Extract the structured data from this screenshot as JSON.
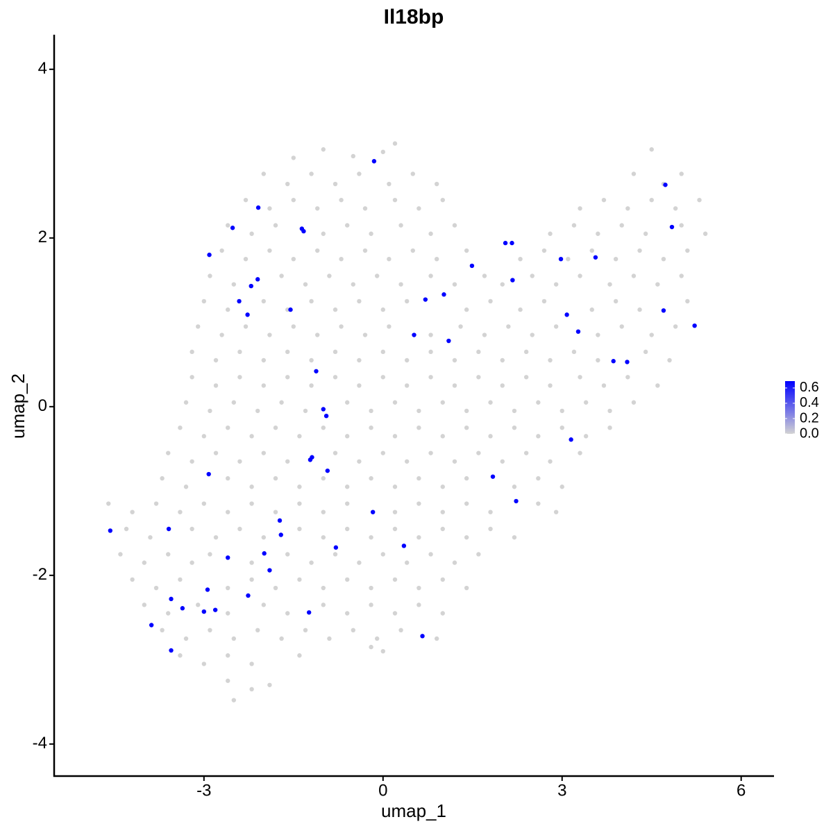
{
  "chart_data": {
    "type": "scatter",
    "title": "Il18bp",
    "xlabel": "umap_1",
    "ylabel": "umap_2",
    "xlim": [
      -5.51,
      6.55
    ],
    "ylim": [
      -4.38,
      4.41
    ],
    "xticks": [
      -3,
      0,
      3,
      6
    ],
    "yticks": [
      -4,
      -2,
      0,
      2,
      4
    ],
    "colorbar": {
      "lim": [
        0,
        0.69
      ],
      "ticks": [
        {
          "value": 0,
          "label": "0.0"
        },
        0.2,
        0.4,
        0.6
      ]
    },
    "series": [
      {
        "color": "#d3d3d3",
        "expression": 0,
        "x": [
          -1.5,
          -1.0,
          -0.5,
          0.0,
          0.2,
          4.5,
          -2.0,
          -1.6,
          -1.2,
          -0.8,
          -0.4,
          0.1,
          0.5,
          0.9,
          4.2,
          4.7,
          5.0,
          -2.3,
          -1.9,
          -1.5,
          -1.1,
          -0.7,
          -0.3,
          0.2,
          0.6,
          1.0,
          3.3,
          3.7,
          4.1,
          4.5,
          4.9,
          5.3,
          -2.6,
          -2.2,
          -1.8,
          -1.0,
          -0.6,
          -0.2,
          0.3,
          0.8,
          1.2,
          2.8,
          3.2,
          3.6,
          4.0,
          4.4,
          5.0,
          5.4,
          -2.7,
          -2.3,
          -1.9,
          -1.5,
          -1.1,
          -0.7,
          -0.3,
          0.1,
          0.5,
          0.9,
          1.4,
          2.3,
          2.7,
          3.1,
          3.5,
          3.9,
          4.3,
          4.7,
          5.1,
          -2.9,
          -2.5,
          -1.7,
          -1.3,
          -0.9,
          -0.5,
          -0.1,
          0.3,
          0.8,
          1.2,
          1.7,
          2.0,
          2.5,
          2.9,
          3.3,
          3.8,
          4.2,
          4.6,
          5.0,
          -3.0,
          -2.6,
          -2.0,
          -1.6,
          -1.2,
          -0.8,
          -0.4,
          0.0,
          0.4,
          1.4,
          1.8,
          2.3,
          2.7,
          3.5,
          3.9,
          4.3,
          5.1,
          -3.1,
          -2.7,
          -2.3,
          -1.9,
          -1.5,
          -1.1,
          -0.7,
          -0.3,
          0.1,
          0.8,
          1.3,
          1.7,
          2.1,
          2.5,
          2.9,
          3.6,
          4.0,
          4.5,
          4.9,
          -3.2,
          -2.8,
          -2.4,
          -2.0,
          -1.6,
          -1.2,
          -0.8,
          -0.4,
          0.0,
          0.4,
          0.8,
          1.2,
          1.6,
          2.0,
          2.4,
          2.8,
          3.2,
          3.6,
          4.4,
          4.8,
          -3.2,
          -2.8,
          -2.4,
          -2.0,
          -1.6,
          -1.2,
          -0.8,
          -0.4,
          0.0,
          0.4,
          0.8,
          1.2,
          1.6,
          2.0,
          2.4,
          2.8,
          3.3,
          3.7,
          4.1,
          4.6,
          -3.3,
          -2.9,
          -2.5,
          -2.1,
          -1.7,
          -1.3,
          -0.6,
          -0.2,
          0.2,
          0.6,
          1.0,
          1.4,
          1.8,
          2.2,
          2.6,
          3.0,
          3.4,
          3.8,
          4.2,
          -3.4,
          -3.0,
          -2.6,
          -2.2,
          -1.8,
          -1.4,
          -1.0,
          -0.6,
          -0.2,
          0.2,
          0.6,
          1.0,
          1.4,
          1.8,
          2.2,
          2.6,
          3.0,
          3.4,
          3.8,
          -3.6,
          -3.2,
          -2.8,
          -2.4,
          -2.0,
          -1.6,
          -0.8,
          -0.4,
          0.0,
          0.4,
          0.8,
          1.2,
          1.6,
          2.0,
          2.4,
          2.8,
          3.3,
          -3.7,
          -3.3,
          -2.6,
          -2.2,
          -1.8,
          -1.4,
          -1.0,
          -0.6,
          -0.2,
          0.2,
          0.6,
          1.0,
          1.4,
          2.2,
          2.6,
          3.0,
          -4.6,
          -4.2,
          -3.8,
          -3.4,
          -3.0,
          -2.6,
          -2.2,
          -1.8,
          -1.4,
          -1.0,
          -0.6,
          0.2,
          0.6,
          1.0,
          1.4,
          1.8,
          2.6,
          2.9,
          -4.3,
          -3.9,
          -3.2,
          -2.8,
          -2.4,
          -2.0,
          -1.4,
          -1.0,
          -0.6,
          -0.2,
          0.2,
          0.6,
          1.0,
          1.4,
          1.8,
          2.2,
          -4.4,
          -4.0,
          -3.6,
          -3.2,
          -2.9,
          -2.2,
          -1.6,
          -1.2,
          -0.8,
          -0.4,
          0.0,
          0.4,
          0.8,
          1.2,
          1.6,
          -4.2,
          -3.8,
          -3.4,
          -2.6,
          -2.2,
          -1.8,
          -1.4,
          -1.0,
          -0.6,
          -0.2,
          0.2,
          0.6,
          1.0,
          1.4,
          -4.0,
          -3.6,
          -3.1,
          -2.6,
          -2.0,
          -1.6,
          -1.0,
          -0.6,
          -0.2,
          0.2,
          0.6,
          1.0,
          -3.7,
          -3.3,
          -2.9,
          -2.5,
          -2.1,
          -1.7,
          -1.3,
          -0.9,
          -0.5,
          -0.1,
          0.3,
          0.9,
          -3.4,
          -3.0,
          -2.6,
          -2.2,
          -1.4,
          -0.2,
          0.0,
          -2.6,
          -2.2,
          -1.9,
          -2.5
        ],
        "y": [
          2.95,
          3.05,
          2.97,
          3.02,
          3.12,
          3.05,
          2.76,
          2.64,
          2.76,
          2.64,
          2.76,
          2.64,
          2.76,
          2.64,
          2.76,
          2.64,
          2.76,
          2.45,
          2.35,
          2.45,
          2.35,
          2.45,
          2.35,
          2.45,
          2.35,
          2.45,
          2.35,
          2.45,
          2.35,
          2.45,
          2.35,
          2.45,
          2.15,
          2.05,
          2.15,
          2.05,
          2.15,
          2.05,
          2.15,
          2.05,
          2.15,
          2.05,
          2.15,
          2.05,
          2.15,
          2.05,
          2.15,
          2.05,
          1.85,
          1.75,
          1.85,
          1.75,
          1.85,
          1.75,
          1.85,
          1.75,
          1.85,
          1.75,
          1.85,
          1.75,
          1.85,
          1.75,
          1.85,
          1.75,
          1.85,
          1.75,
          1.85,
          1.55,
          1.45,
          1.55,
          1.45,
          1.55,
          1.45,
          1.55,
          1.45,
          1.55,
          1.45,
          1.55,
          1.45,
          1.55,
          1.45,
          1.55,
          1.45,
          1.55,
          1.45,
          1.55,
          1.25,
          1.15,
          1.25,
          1.15,
          1.25,
          1.15,
          1.25,
          1.15,
          1.25,
          1.15,
          1.25,
          1.15,
          1.25,
          1.15,
          1.25,
          1.15,
          1.25,
          0.95,
          0.85,
          0.95,
          0.85,
          0.95,
          0.85,
          0.95,
          0.85,
          0.95,
          0.85,
          0.95,
          0.85,
          0.95,
          0.85,
          0.95,
          0.85,
          0.95,
          0.85,
          0.95,
          0.65,
          0.55,
          0.65,
          0.55,
          0.65,
          0.55,
          0.65,
          0.55,
          0.65,
          0.55,
          0.65,
          0.55,
          0.65,
          0.55,
          0.65,
          0.55,
          0.65,
          0.55,
          0.65,
          0.55,
          0.35,
          0.25,
          0.35,
          0.25,
          0.35,
          0.25,
          0.35,
          0.25,
          0.35,
          0.25,
          0.35,
          0.25,
          0.35,
          0.25,
          0.35,
          0.25,
          0.35,
          0.25,
          0.35,
          0.25,
          0.05,
          -0.05,
          0.05,
          -0.05,
          0.05,
          -0.05,
          0.05,
          -0.05,
          0.05,
          -0.05,
          0.05,
          -0.05,
          0.05,
          -0.05,
          0.05,
          -0.05,
          0.05,
          -0.05,
          0.05,
          -0.25,
          -0.35,
          -0.25,
          -0.35,
          -0.25,
          -0.35,
          -0.25,
          -0.35,
          -0.25,
          -0.35,
          -0.25,
          -0.35,
          -0.25,
          -0.35,
          -0.25,
          -0.35,
          -0.25,
          -0.35,
          -0.25,
          -0.55,
          -0.65,
          -0.55,
          -0.65,
          -0.55,
          -0.65,
          -0.55,
          -0.65,
          -0.55,
          -0.65,
          -0.55,
          -0.65,
          -0.55,
          -0.65,
          -0.55,
          -0.65,
          -0.55,
          -0.85,
          -0.95,
          -0.85,
          -0.95,
          -0.85,
          -0.95,
          -0.85,
          -0.95,
          -0.85,
          -0.95,
          -0.85,
          -0.95,
          -0.85,
          -0.95,
          -0.85,
          -0.95,
          -1.15,
          -1.25,
          -1.15,
          -1.25,
          -1.15,
          -1.25,
          -1.15,
          -1.25,
          -1.15,
          -1.25,
          -1.15,
          -1.25,
          -1.15,
          -1.25,
          -1.15,
          -1.25,
          -1.15,
          -1.25,
          -1.45,
          -1.55,
          -1.45,
          -1.55,
          -1.45,
          -1.55,
          -1.45,
          -1.55,
          -1.45,
          -1.55,
          -1.45,
          -1.55,
          -1.45,
          -1.55,
          -1.45,
          -1.55,
          -1.75,
          -1.85,
          -1.75,
          -1.85,
          -1.75,
          -1.85,
          -1.75,
          -1.85,
          -1.75,
          -1.85,
          -1.75,
          -1.85,
          -1.75,
          -1.85,
          -1.75,
          -2.05,
          -2.15,
          -2.05,
          -2.15,
          -2.05,
          -2.15,
          -2.05,
          -2.15,
          -2.05,
          -2.15,
          -2.05,
          -2.15,
          -2.05,
          -2.15,
          -2.35,
          -2.45,
          -2.35,
          -2.45,
          -2.35,
          -2.45,
          -2.35,
          -2.45,
          -2.35,
          -2.45,
          -2.35,
          -2.45,
          -2.65,
          -2.75,
          -2.65,
          -2.75,
          -2.65,
          -2.75,
          -2.65,
          -2.75,
          -2.65,
          -2.75,
          -2.65,
          -2.75,
          -2.95,
          -3.05,
          -2.95,
          -3.05,
          -2.95,
          -2.85,
          -2.9,
          -3.25,
          -3.35,
          -3.3,
          -3.48
        ]
      },
      {
        "color": "#0000ff",
        "expression": 0.69,
        "x": [
          -0.15,
          -2.09,
          -2.52,
          -1.36,
          -1.33,
          -2.91,
          2.05,
          2.16,
          1.49,
          2.98,
          3.56,
          4.73,
          4.84,
          -2.1,
          -2.21,
          2.17,
          1.02,
          0.71,
          -2.41,
          -1.55,
          -2.27,
          3.08,
          4.7,
          3.27,
          5.22,
          0.52,
          1.1,
          3.86,
          4.09,
          -1.12,
          -1.0,
          -0.95,
          3.15,
          -1.19,
          -1.22,
          -0.93,
          -2.92,
          1.84,
          2.23,
          -0.17,
          -1.73,
          -4.57,
          -3.59,
          -1.71,
          0.35,
          -0.79,
          -1.99,
          -2.6,
          -1.9,
          -2.94,
          -2.26,
          -3.55,
          -3.36,
          -2.81,
          -3.0,
          -1.24,
          -3.88,
          0.66,
          -3.55
        ],
        "y": [
          2.91,
          2.36,
          2.12,
          2.11,
          2.08,
          1.8,
          1.94,
          1.94,
          1.67,
          1.75,
          1.77,
          2.63,
          2.13,
          1.51,
          1.43,
          1.5,
          1.33,
          1.27,
          1.25,
          1.15,
          1.09,
          1.09,
          1.14,
          0.89,
          0.96,
          0.85,
          0.78,
          0.54,
          0.53,
          0.42,
          -0.03,
          -0.11,
          -0.39,
          -0.6,
          -0.63,
          -0.76,
          -0.8,
          -0.83,
          -1.12,
          -1.25,
          -1.35,
          -1.47,
          -1.45,
          -1.52,
          -1.65,
          -1.67,
          -1.74,
          -1.79,
          -1.94,
          -2.17,
          -2.24,
          -2.28,
          -2.39,
          -2.41,
          -2.43,
          -2.44,
          -2.59,
          -2.72,
          -2.89
        ]
      }
    ]
  }
}
